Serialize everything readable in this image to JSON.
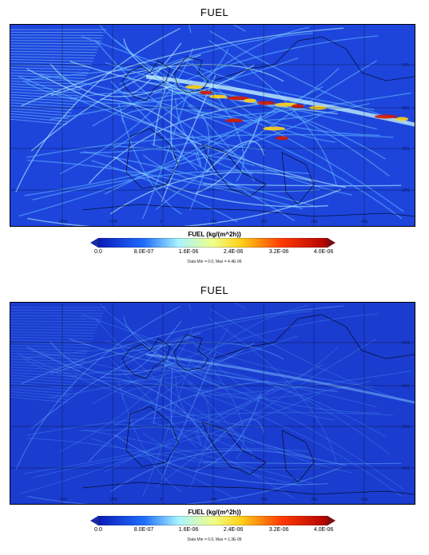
{
  "panels": [
    {
      "title": "FUEL",
      "colorbar_title": "FUEL (kg/(m^2h))",
      "ticks": [
        "0.0",
        "8.0E-07",
        "1.6E-06",
        "2.4E-06",
        "3.2E-06",
        "4.0E-06"
      ],
      "data_range": "Data Min = 0.0, Max = 4.4E-06",
      "intensity": "high",
      "lon_labels": [
        "20W",
        "10W",
        "0",
        "10E",
        "20E",
        "30E",
        "40E"
      ],
      "lat_labels": [
        "50N",
        "40N",
        "30N",
        "20N"
      ]
    },
    {
      "title": "FUEL",
      "colorbar_title": "FUEL (kg/(m^2h))",
      "ticks": [
        "0.0",
        "8.0E-07",
        "1.6E-06",
        "2.4E-06",
        "3.2E-06",
        "4.0E-06"
      ],
      "data_range": "Data Min = 0.0, Max = 1.3E-06",
      "intensity": "low",
      "lon_labels": [
        "20W",
        "10W",
        "0",
        "10E",
        "20E",
        "30E",
        "40E"
      ],
      "lat_labels": [
        "50N",
        "40N",
        "30N",
        "20N"
      ]
    }
  ],
  "colors": {
    "background_field": "#1a3fd6",
    "route_low": "#4da8ff",
    "route_mid": "#a8f0ff",
    "hot_yellow": "#ffd21a",
    "hot_red": "#d11a00",
    "coast": "#000000"
  }
}
